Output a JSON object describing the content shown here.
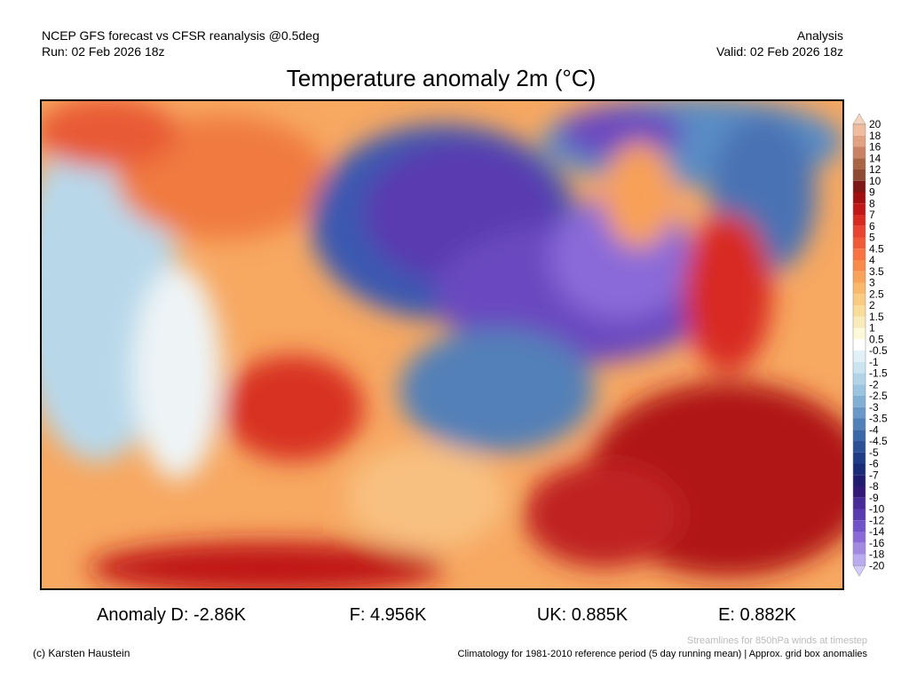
{
  "header": {
    "left_line1": "NCEP GFS forecast vs CFSR reanalysis @0.5deg",
    "left_line2": "Run: 02 Feb 2026 18z",
    "right_line1": "Analysis",
    "right_line2": "Valid: 02 Feb 2026 18z",
    "title": "Temperature anomaly 2m (°C)"
  },
  "colorbar": {
    "labels": [
      20,
      18,
      16,
      14,
      12,
      10,
      9,
      8,
      7,
      6,
      5,
      4.5,
      4,
      3.5,
      3,
      2.5,
      2,
      1.5,
      1,
      0.5,
      -0.5,
      -1,
      -1.5,
      -2,
      -2.5,
      -3,
      -3.5,
      -4,
      -4.5,
      -5,
      -6,
      -7,
      -8,
      -9,
      -10,
      -12,
      -14,
      -16,
      -18,
      -20
    ],
    "colors": [
      "#f5d4bf",
      "#f0bca0",
      "#e0a282",
      "#c98263",
      "#a96446",
      "#8f4a33",
      "#7e1616",
      "#a10f10",
      "#c01818",
      "#d82a20",
      "#e84230",
      "#f05a38",
      "#f87242",
      "#f88a4a",
      "#f9a25a",
      "#f9b86a",
      "#f9cc82",
      "#f9dc9a",
      "#f9ecba",
      "#fcf8da",
      "#ffffff",
      "#e2f0f8",
      "#cae4f0",
      "#b2d4e8",
      "#9ac4e0",
      "#82b0d4",
      "#6a98c8",
      "#5280b8",
      "#3a68a8",
      "#2a5098",
      "#203c88",
      "#1a2c78",
      "#221c70",
      "#321878",
      "#4a2a98",
      "#5a3ab0",
      "#7252c8",
      "#8a6ad8",
      "#a28ae2",
      "#baaaf0",
      "#d2caf8"
    ]
  },
  "stats": [
    "Anomaly D: -2.86K",
    "F: 4.956K",
    "UK: 0.885K",
    "E: 0.882K"
  ],
  "footer": {
    "credit": "(c) Karsten Haustein",
    "streamlines": "Streamlines for 850hPa winds at timestep",
    "climatology": "Climatology for 1981-2010 reference period (5 day running mean) | Approx. grid box anomalies"
  }
}
